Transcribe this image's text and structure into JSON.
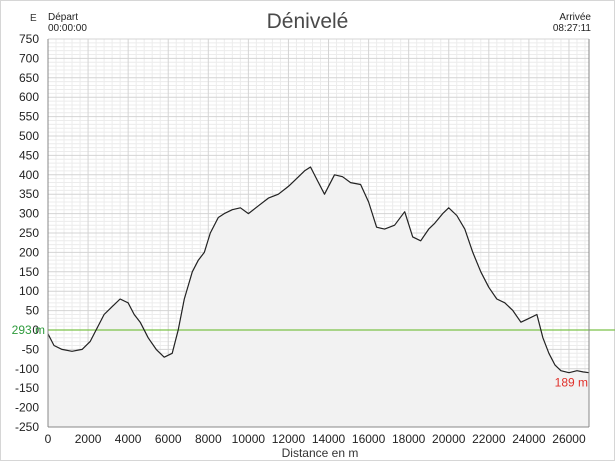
{
  "header": {
    "title": "Dénivelé",
    "unit_label": "E",
    "start_label": "Départ",
    "start_time": "00:00:00",
    "end_label": "Arrivée",
    "end_time": "08:27:11"
  },
  "colors": {
    "line": "#222222",
    "fill": "#f2f2f2",
    "reference_line": "#7cc24a",
    "reference_label": "#2e9a3c",
    "end_label": "#e0302a",
    "grid_minor": "#ececec",
    "grid_major": "#d4d4d4"
  },
  "chart_data": {
    "type": "area",
    "title": "Dénivelé",
    "xlabel": "Distance en m",
    "ylabel": "",
    "xlim": [
      0,
      27000
    ],
    "ylim": [
      -250,
      750
    ],
    "x_ticks": [
      0,
      2000,
      4000,
      6000,
      8000,
      10000,
      12000,
      14000,
      16000,
      18000,
      20000,
      22000,
      24000,
      26000
    ],
    "y_ticks": [
      -250,
      -200,
      -150,
      -100,
      -50,
      0,
      50,
      100,
      150,
      200,
      250,
      300,
      350,
      400,
      450,
      500,
      550,
      600,
      650,
      700,
      750
    ],
    "grid": true,
    "reference_line": {
      "value": 293,
      "label": "293 m"
    },
    "end_annotation": {
      "label": "189 m"
    },
    "series": [
      {
        "x": [
          0,
          300,
          700,
          1200,
          1700,
          2100,
          2400,
          2800,
          3200,
          3600,
          4000,
          4300,
          4600,
          5000,
          5400,
          5800,
          6200,
          6500,
          6800,
          7200,
          7500,
          7800,
          8100,
          8500,
          8800,
          9200,
          9600,
          10000,
          10500,
          11000,
          11500,
          12000,
          12400,
          12800,
          13100,
          13500,
          13800,
          14300,
          14700,
          15100,
          15600,
          16000,
          16400,
          16800,
          17300,
          17800,
          18200,
          18600,
          19000,
          19300,
          19700,
          20000,
          20400,
          20800,
          21200,
          21600,
          22000,
          22400,
          22800,
          23200,
          23600,
          24000,
          24400,
          24700,
          25000,
          25300,
          25600,
          26000,
          26400,
          26700,
          27000
        ],
        "values": [
          -10,
          -40,
          -50,
          -55,
          -50,
          -30,
          0,
          40,
          60,
          80,
          70,
          40,
          20,
          -20,
          -50,
          -70,
          -60,
          0,
          80,
          150,
          180,
          200,
          250,
          290,
          300,
          310,
          315,
          300,
          320,
          340,
          350,
          370,
          390,
          410,
          420,
          380,
          350,
          400,
          395,
          380,
          375,
          330,
          265,
          260,
          270,
          305,
          240,
          230,
          260,
          275,
          300,
          315,
          295,
          260,
          200,
          150,
          110,
          80,
          70,
          50,
          20,
          30,
          40,
          -20,
          -60,
          -90,
          -105,
          -110,
          -105,
          -108,
          -110
        ]
      }
    ]
  }
}
